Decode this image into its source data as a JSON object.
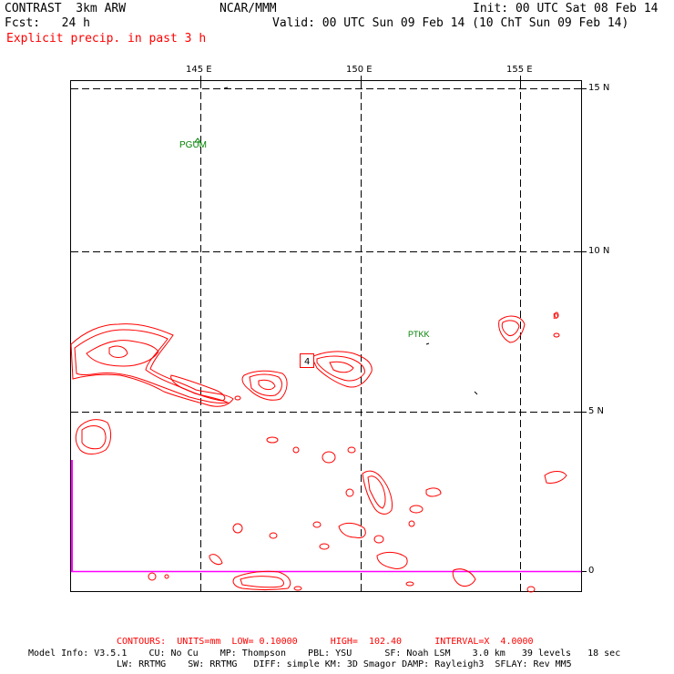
{
  "header": {
    "model": "CONTRAST  3km ARW",
    "org": "NCAR/MMM",
    "init": "Init: 00 UTC Sat 08 Feb 14",
    "fcst": "Fcst:   24 h",
    "valid": "Valid: 00 UTC Sun 09 Feb 14 (10 ChT Sun 09 Feb 14)",
    "field": "Explicit precip. in past 3 h"
  },
  "map": {
    "lon_labels": [
      "145 E",
      "150 E",
      "155 E"
    ],
    "lat_labels": [
      "15 N",
      "10 N",
      "5 N",
      "0"
    ],
    "stations": [
      {
        "id": "PGUM",
        "lon": 144.8,
        "lat": 13.5
      },
      {
        "id": "PTKK",
        "lon": 151.8,
        "lat": 7.45
      }
    ],
    "box_label": "4"
  },
  "contour_info": "CONTOURS:  UNITS=mm  LOW= 0.10000      HIGH=  102.40      INTERVAL=X  4.0000",
  "model_info": {
    "line1": "Model Info: V3.5.1    CU: No Cu    MP: Thompson    PBL: YSU      SF: Noah LSM    3.0 km   39 levels   18 sec",
    "line2": "LW: RRTMG    SW: RRTMG   DIFF: simple KM: 3D Smagor DAMP: Rayleigh3  SFLAY: Rev MM5"
  },
  "colors": {
    "contour": "#ff0000",
    "station": "#008000",
    "equator": "#ff00ff",
    "grid": "#000000"
  }
}
